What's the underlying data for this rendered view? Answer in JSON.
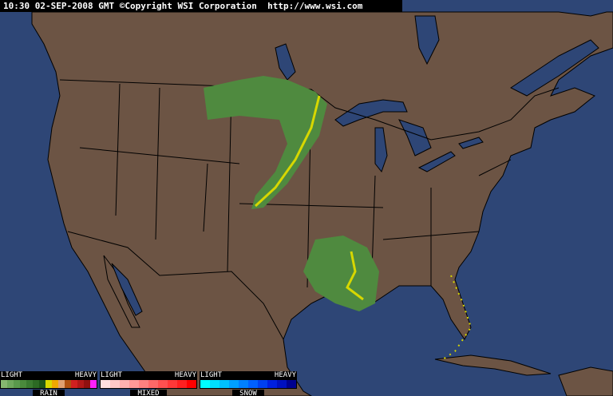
{
  "header": {
    "timestamp": "10:30 02-SEP-2008 GMT",
    "copyright": "©Copyright WSI Corporation",
    "url": "http://www.wsi.com"
  },
  "colors": {
    "ocean": "#2e4676",
    "land": "#6c5444",
    "borders": "#000000",
    "rain_light": "#4f8a3f",
    "rain_moderate": "#d7d700"
  },
  "legend": [
    {
      "name": "RAIN",
      "light": "LIGHT",
      "heavy": "HEAVY",
      "colors": [
        "#86b870",
        "#6ea85c",
        "#5a9a4c",
        "#4a8a3c",
        "#3a7a30",
        "#2c6a24",
        "#1e5618",
        "#d8d800",
        "#f0a800",
        "#e0a070",
        "#b05010",
        "#d02020",
        "#b01818",
        "#901010",
        "#ff20ff"
      ]
    },
    {
      "name": "MIXED",
      "light": "LIGHT",
      "heavy": "HEAVY",
      "colors": [
        "#ffe0e0",
        "#ffc8c8",
        "#ffb0b0",
        "#ff9898",
        "#ff8080",
        "#ff6868",
        "#ff5050",
        "#ff3838",
        "#ff2020",
        "#ff0000"
      ]
    },
    {
      "name": "SNOW",
      "light": "LIGHT",
      "heavy": "HEAVY",
      "colors": [
        "#00ffff",
        "#00e0ff",
        "#00c0ff",
        "#00a0ff",
        "#0080ff",
        "#0060ff",
        "#0040f0",
        "#0020e0",
        "#0010c0",
        "#000090"
      ]
    }
  ]
}
